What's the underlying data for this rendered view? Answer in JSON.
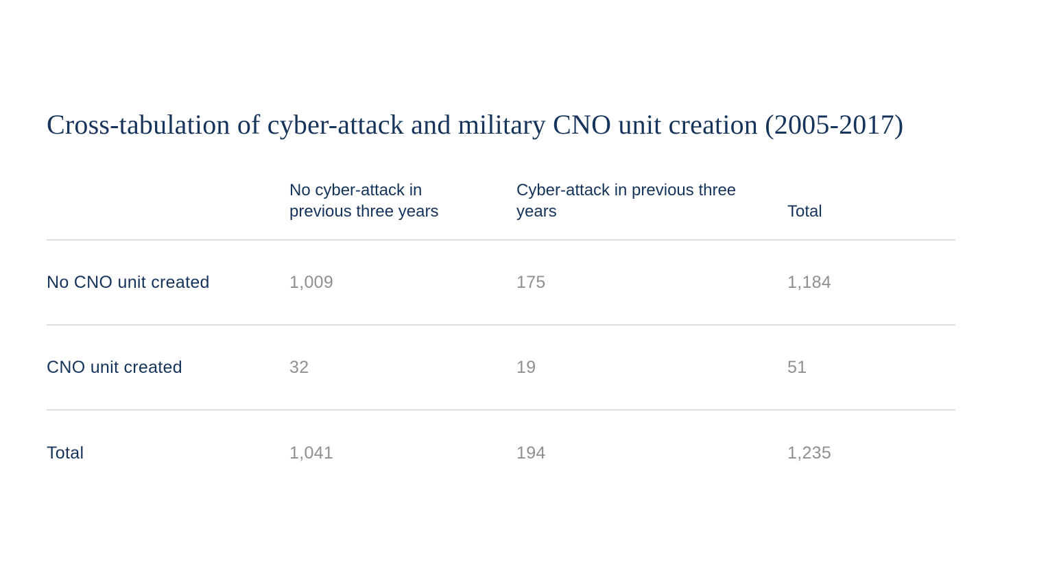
{
  "title": "Cross-tabulation of cyber-attack and military CNO unit creation (2005-2017)",
  "colors": {
    "title_navy": "#16335b",
    "header_navy": "#16335b",
    "value_gray": "#8f8f8f",
    "divider_gray": "#dcdcdc",
    "background": "#ffffff"
  },
  "table": {
    "columns": [
      "",
      "No cyber-attack in previous three years",
      "Cyber-attack in previous three years",
      "Total"
    ],
    "rows": [
      {
        "label": "No CNO unit created",
        "values": [
          "1,009",
          "175",
          "1,184"
        ]
      },
      {
        "label": "CNO unit created",
        "values": [
          "32",
          "19",
          "51"
        ]
      },
      {
        "label": "Total",
        "values": [
          "1,041",
          "194",
          "1,235"
        ]
      }
    ]
  },
  "chart_data": {
    "type": "table",
    "title": "Cross-tabulation of cyber-attack and military CNO unit creation (2005-2017)",
    "columns": [
      "No cyber-attack in previous three years",
      "Cyber-attack in previous three years",
      "Total"
    ],
    "row_labels": [
      "No CNO unit created",
      "CNO unit created",
      "Total"
    ],
    "values": [
      [
        1009,
        175,
        1184
      ],
      [
        32,
        19,
        51
      ],
      [
        1041,
        194,
        1235
      ]
    ],
    "layout": {
      "grid": "horizontal dividers only",
      "legend": "none"
    }
  }
}
